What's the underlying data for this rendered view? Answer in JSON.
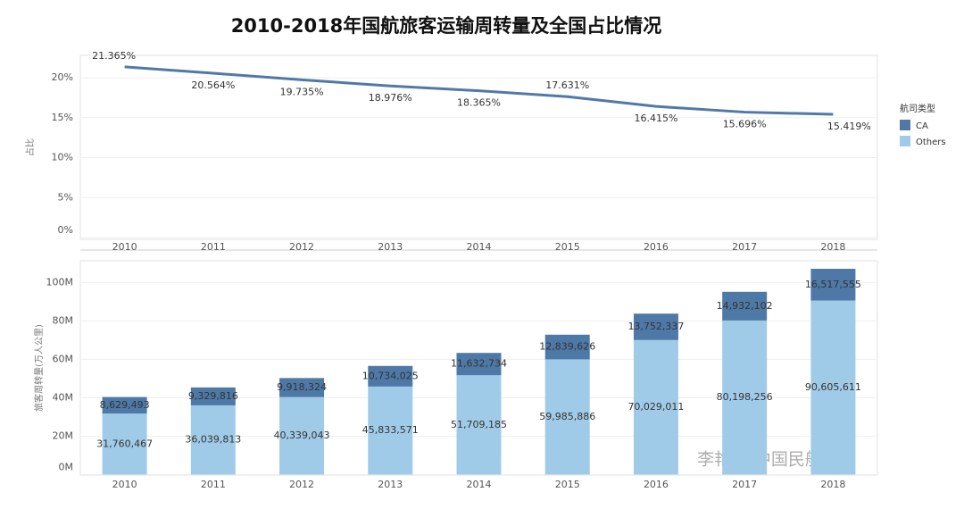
{
  "title": "2010-2018年国航旅客运输周转量及全国占比情况",
  "chart_data": [
    {
      "type": "line",
      "ylabel": "占比",
      "categories": [
        "2010",
        "2011",
        "2012",
        "2013",
        "2014",
        "2015",
        "2016",
        "2017",
        "2018"
      ],
      "values": [
        21.365,
        20.564,
        19.735,
        18.976,
        18.365,
        17.631,
        16.415,
        15.696,
        15.419
      ],
      "value_labels": [
        "21.365%",
        "20.564%",
        "19.735%",
        "18.976%",
        "18.365%",
        "17.631%",
        "16.415%",
        "15.696%",
        "15.419%"
      ],
      "color": "#5179a8",
      "ylim": [
        0,
        22.8
      ],
      "yticks": [
        {
          "value": 0,
          "label": "0%"
        },
        {
          "value": 5,
          "label": "5%"
        },
        {
          "value": 10,
          "label": "10%"
        },
        {
          "value": 15,
          "label": "15%"
        },
        {
          "value": 20,
          "label": "20%"
        }
      ],
      "grid": true
    },
    {
      "type": "stacked_bar",
      "ylabel": "旅客周转量(万人公里)",
      "legend_title": "航司类型",
      "legend": "right",
      "annotation": "李艳伟-中国民航大学",
      "categories": [
        "2010",
        "2011",
        "2012",
        "2013",
        "2014",
        "2015",
        "2016",
        "2017",
        "2018"
      ],
      "series": [
        {
          "name": "CA",
          "color": "#4e79a7",
          "values": [
            8629493,
            9329816,
            9918324,
            10734025,
            11632734,
            12839626,
            13752337,
            14932102,
            16517555
          ],
          "value_labels": [
            "8,629,493",
            "9,329,816",
            "9,918,324",
            "10,734,025",
            "11,632,734",
            "12,839,626",
            "13,752,337",
            "14,932,102",
            "16,517,555"
          ]
        },
        {
          "name": "Others",
          "color": "#a0cbe8",
          "values": [
            31760467,
            36039813,
            40339043,
            45833571,
            51709185,
            59985886,
            70029011,
            80198256,
            90605611
          ],
          "value_labels": [
            "31,760,467",
            "36,039,813",
            "40,339,043",
            "45,833,571",
            "51,709,185",
            "59,985,886",
            "70,029,011",
            "80,198,256",
            "90,605,611"
          ]
        }
      ],
      "ylim": [
        0,
        111300000
      ],
      "yticks": [
        {
          "value": 0,
          "label": "0M"
        },
        {
          "value": 20000000,
          "label": "20M"
        },
        {
          "value": 40000000,
          "label": "40M"
        },
        {
          "value": 60000000,
          "label": "60M"
        },
        {
          "value": 80000000,
          "label": "80M"
        },
        {
          "value": 100000000,
          "label": "100M"
        }
      ],
      "grid": true
    }
  ]
}
